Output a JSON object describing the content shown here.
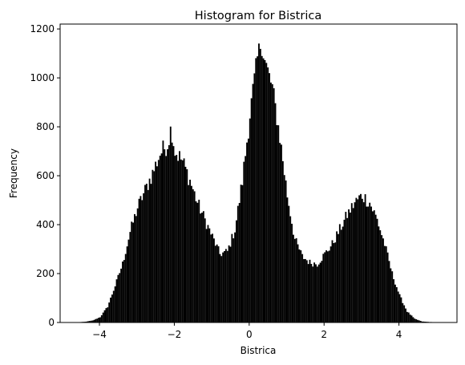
{
  "chart_data": {
    "type": "histogram",
    "title": "Histogram for Bistrica",
    "xlabel": "Bistrica",
    "ylabel": "Frequency",
    "xlim": [
      -5.05,
      5.55
    ],
    "ylim": [
      0,
      1220
    ],
    "xticks": [
      -4,
      -2,
      0,
      2,
      4
    ],
    "xtick_labels": [
      "−4",
      "−2",
      "0",
      "2",
      "4"
    ],
    "yticks": [
      0,
      200,
      400,
      600,
      800,
      1000,
      1200
    ],
    "ytick_labels": [
      "0",
      "200",
      "400",
      "600",
      "800",
      "1000",
      "1200"
    ],
    "bar_color": "#000000",
    "grid": false,
    "bin_width": 0.04,
    "bins": [
      {
        "x": -4.6,
        "value": 1
      },
      {
        "x": -4.4,
        "value": 3
      },
      {
        "x": -4.2,
        "value": 8
      },
      {
        "x": -4.0,
        "value": 22
      },
      {
        "x": -3.8,
        "value": 65
      },
      {
        "x": -3.6,
        "value": 150
      },
      {
        "x": -3.4,
        "value": 240
      },
      {
        "x": -3.2,
        "value": 370
      },
      {
        "x": -3.0,
        "value": 470
      },
      {
        "x": -2.8,
        "value": 540
      },
      {
        "x": -2.6,
        "value": 610
      },
      {
        "x": -2.4,
        "value": 690
      },
      {
        "x": -2.2,
        "value": 730
      },
      {
        "x": -2.1,
        "value": 800
      },
      {
        "x": -2.0,
        "value": 700
      },
      {
        "x": -1.8,
        "value": 660
      },
      {
        "x": -1.6,
        "value": 580
      },
      {
        "x": -1.4,
        "value": 490
      },
      {
        "x": -1.2,
        "value": 420
      },
      {
        "x": -1.0,
        "value": 350
      },
      {
        "x": -0.8,
        "value": 280
      },
      {
        "x": -0.6,
        "value": 290
      },
      {
        "x": -0.4,
        "value": 380
      },
      {
        "x": -0.2,
        "value": 580
      },
      {
        "x": 0.0,
        "value": 850
      },
      {
        "x": 0.1,
        "value": 970
      },
      {
        "x": 0.2,
        "value": 1080
      },
      {
        "x": 0.3,
        "value": 1150
      },
      {
        "x": 0.4,
        "value": 1070
      },
      {
        "x": 0.6,
        "value": 960
      },
      {
        "x": 0.8,
        "value": 760
      },
      {
        "x": 1.0,
        "value": 520
      },
      {
        "x": 1.2,
        "value": 340
      },
      {
        "x": 1.4,
        "value": 270
      },
      {
        "x": 1.6,
        "value": 245
      },
      {
        "x": 1.8,
        "value": 240
      },
      {
        "x": 2.0,
        "value": 280
      },
      {
        "x": 2.2,
        "value": 320
      },
      {
        "x": 2.4,
        "value": 380
      },
      {
        "x": 2.6,
        "value": 440
      },
      {
        "x": 2.8,
        "value": 490
      },
      {
        "x": 3.0,
        "value": 520
      },
      {
        "x": 3.2,
        "value": 490
      },
      {
        "x": 3.4,
        "value": 420
      },
      {
        "x": 3.6,
        "value": 320
      },
      {
        "x": 3.8,
        "value": 200
      },
      {
        "x": 4.0,
        "value": 110
      },
      {
        "x": 4.2,
        "value": 45
      },
      {
        "x": 4.4,
        "value": 15
      },
      {
        "x": 4.6,
        "value": 4
      },
      {
        "x": 4.8,
        "value": 2
      },
      {
        "x": 5.0,
        "value": 1
      }
    ]
  }
}
